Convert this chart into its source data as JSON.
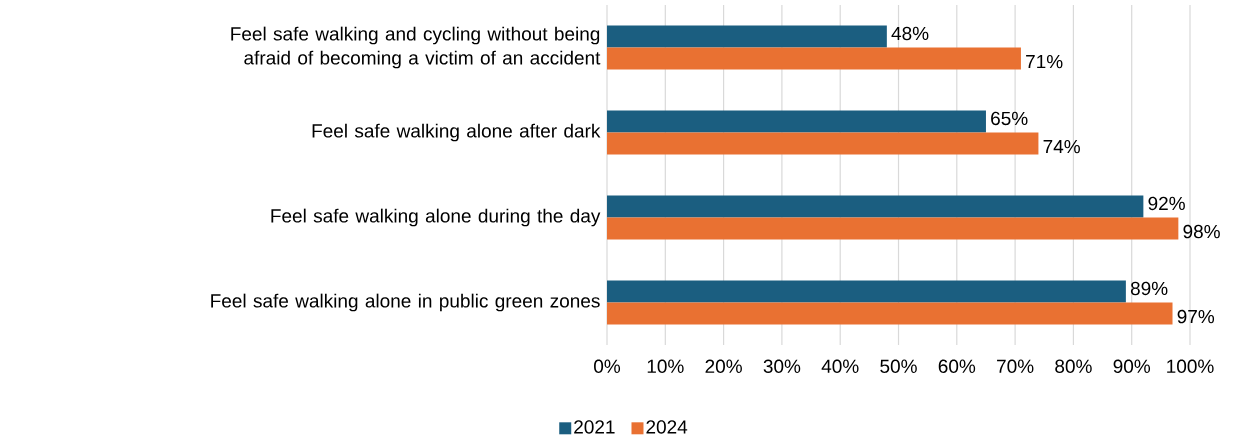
{
  "chart_data": {
    "type": "bar",
    "orientation": "horizontal",
    "categories": [
      "Feel safe walking and cycling without being afraid of becoming a victim of an accident",
      "Feel safe walking alone after dark",
      "Feel safe walking alone during the day",
      "Feel safe walking alone in public green zones"
    ],
    "series": [
      {
        "name": "2021",
        "color": "#1b5e80",
        "values": [
          48,
          65,
          92,
          89
        ],
        "value_labels": [
          "48%",
          "65%",
          "92%",
          "89%"
        ]
      },
      {
        "name": "2024",
        "color": "#e97132",
        "values": [
          71,
          74,
          98,
          97
        ],
        "value_labels": [
          "71%",
          "74%",
          "98%",
          "97%"
        ]
      }
    ],
    "xlim": [
      0,
      100
    ],
    "xticks": [
      {
        "value": 0,
        "label": "0%"
      },
      {
        "value": 10,
        "label": "10%"
      },
      {
        "value": 20,
        "label": "20%"
      },
      {
        "value": 30,
        "label": "30%"
      },
      {
        "value": 40,
        "label": "40%"
      },
      {
        "value": 50,
        "label": "50%"
      },
      {
        "value": 60,
        "label": "60%"
      },
      {
        "value": 70,
        "label": "70%"
      },
      {
        "value": 80,
        "label": "80%"
      },
      {
        "value": 90,
        "label": "90%"
      },
      {
        "value": 100,
        "label": "100%"
      }
    ],
    "grid": "x",
    "legend": "bottom"
  }
}
